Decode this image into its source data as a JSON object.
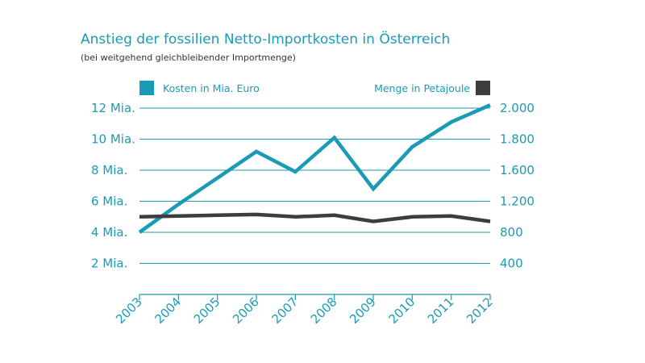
{
  "colors": {
    "accent": "#1a9bb5",
    "series_cost": "#1a9bb5",
    "series_volume": "#3d3d3d",
    "subtitle": "#333333"
  },
  "chart_data": {
    "type": "line",
    "title": "Anstieg der fossilien Netto-Importkosten in Österreich",
    "subtitle": "(bei weitgehend gleichbleibender Importmenge)",
    "x": [
      "2003",
      "2004",
      "2005",
      "2006",
      "2007",
      "2008",
      "2009",
      "2010",
      "2011",
      "2012"
    ],
    "legend": {
      "left": "Kosten in Mia. Euro",
      "right": "Menge in Petajoule"
    },
    "left_axis": {
      "ticks": [
        2,
        4,
        6,
        8,
        10,
        12
      ],
      "tick_labels": [
        "2 Mia.",
        "4 Mia.",
        "6 Mia.",
        "8 Mia.",
        "10 Mia.",
        "12 Mia."
      ]
    },
    "right_axis": {
      "tick_labels": [
        "400",
        "800",
        "1.200",
        "1.600",
        "1.800",
        "2.000"
      ]
    },
    "series": [
      {
        "name": "Kosten in Mia. Euro",
        "axis": "left",
        "color": "#1a9bb5",
        "values": [
          4.0,
          5.8,
          7.5,
          9.2,
          7.9,
          10.1,
          6.8,
          9.5,
          11.1,
          12.2
        ]
      },
      {
        "name": "Menge in Petajoule",
        "axis": "right",
        "color": "#3d3d3d",
        "values": [
          1000,
          1010,
          1020,
          1030,
          1000,
          1020,
          940,
          1000,
          1010,
          940
        ]
      }
    ]
  }
}
